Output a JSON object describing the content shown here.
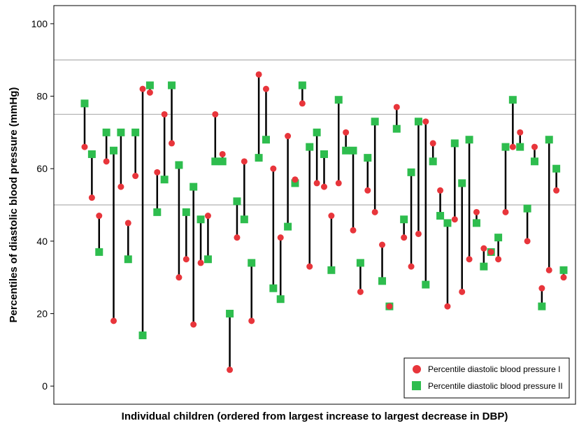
{
  "chart_data": {
    "type": "scatter",
    "subtype": "paired dot plot (dumbbell)",
    "title": "",
    "xlabel": "Individual children (ordered from largest increase to largest decrease in DBP)",
    "ylabel": "Percentiles of diastolic blood pressure (mmHg)",
    "ylim": [
      -5,
      105
    ],
    "yticks": [
      "0",
      "20",
      "40",
      "60",
      "80",
      "100"
    ],
    "reference_lines": [
      50,
      75,
      90
    ],
    "grid": false,
    "legend_position": "bottom-right",
    "series": [
      {
        "name": "Percentile diastolic blood pressure I",
        "color": "#e8353b",
        "marker": "circle",
        "values": [
          66,
          52,
          47,
          62,
          18,
          55,
          45,
          58,
          82,
          81,
          59,
          75,
          67,
          30,
          35,
          17,
          34,
          47,
          75,
          64,
          4.5,
          41,
          62,
          18,
          86,
          82,
          60,
          41,
          69,
          57,
          78,
          33,
          56,
          55,
          47,
          56,
          70,
          43,
          26,
          54,
          48,
          39,
          22,
          77,
          41,
          33,
          42,
          73,
          67,
          54,
          22,
          46,
          26,
          35,
          48,
          38,
          37,
          35,
          48,
          66,
          70,
          40,
          66,
          27,
          32,
          54,
          30
        ]
      },
      {
        "name": "Percentile diastolic blood pressure II",
        "color": "#2ebd4e",
        "marker": "square",
        "values": [
          78,
          64,
          37,
          70,
          65,
          70,
          35,
          70,
          14,
          83,
          48,
          57,
          83,
          61,
          48,
          55,
          46,
          35,
          62,
          62,
          20,
          51,
          46,
          34,
          63,
          68,
          27,
          24,
          44,
          56,
          83,
          66,
          70,
          64,
          32,
          79,
          65,
          65,
          34,
          63,
          73,
          29,
          22,
          71,
          46,
          59,
          73,
          28,
          62,
          47,
          45,
          67,
          56,
          68,
          45,
          33,
          37,
          41,
          66,
          79,
          66,
          49,
          62,
          22,
          68,
          60,
          32
        ]
      }
    ]
  }
}
